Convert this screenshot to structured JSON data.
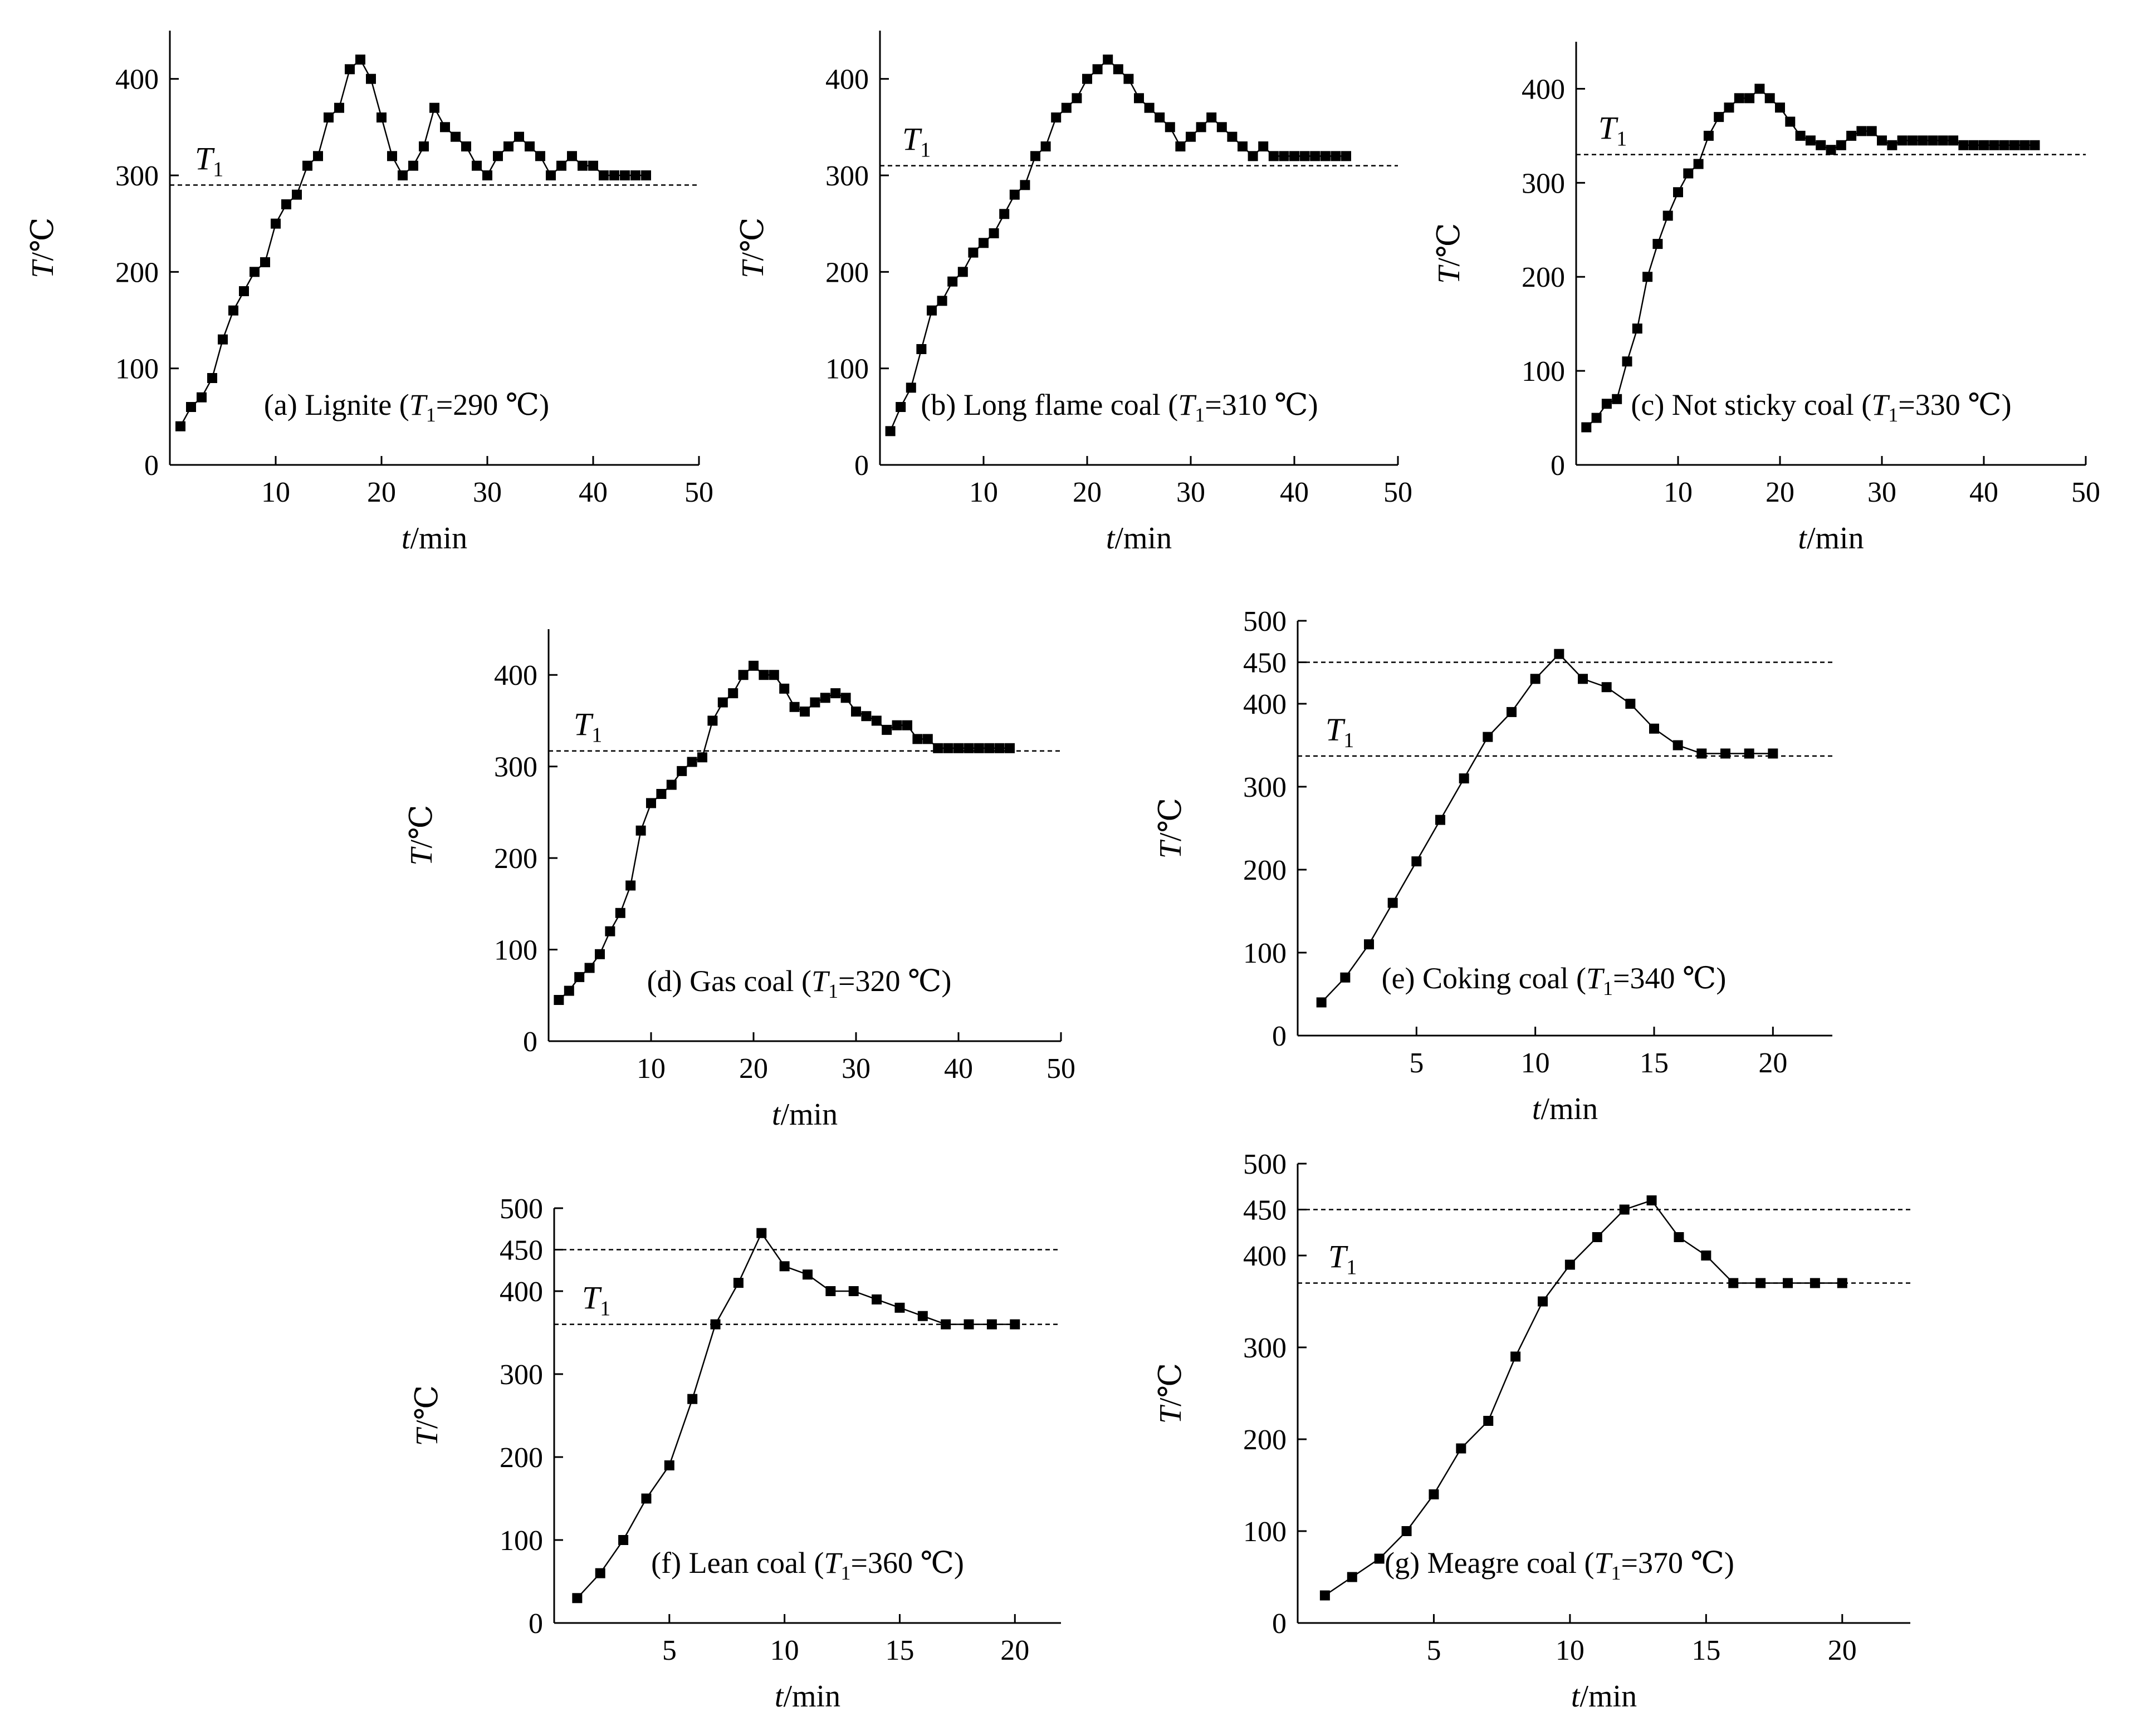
{
  "figure": {
    "panels_order": [
      "a",
      "b",
      "c",
      "d",
      "e",
      "f",
      "g"
    ]
  },
  "chart_data": [
    {
      "id": "a",
      "type": "line",
      "marker": "square",
      "caption": {
        "prefix": "(a) Lignite (",
        "var": "T",
        "sub": "1",
        "suffix": "=290 ℃)"
      },
      "xlabel": {
        "var": "t",
        "unit": "/min"
      },
      "ylabel": {
        "var": "T",
        "unit": "/℃"
      },
      "xlim": [
        0,
        50
      ],
      "ylim": [
        0,
        450
      ],
      "xticks": [
        10,
        20,
        30,
        40,
        50
      ],
      "yticks": [
        0,
        100,
        200,
        300,
        400
      ],
      "reference_lines": [
        {
          "y": 290,
          "label": {
            "var": "T",
            "sub": "1"
          }
        }
      ],
      "series": [
        {
          "name": "Lignite",
          "x": [
            1,
            2,
            3,
            4,
            5,
            6,
            7,
            8,
            9,
            10,
            11,
            12,
            13,
            14,
            15,
            16,
            17,
            18,
            19,
            20,
            21,
            22,
            23,
            24,
            25,
            26,
            27,
            28,
            29,
            30,
            31,
            32,
            33,
            34,
            35,
            36,
            37,
            38,
            39,
            40,
            41,
            42,
            43,
            44,
            45
          ],
          "y": [
            40,
            60,
            70,
            90,
            130,
            160,
            180,
            200,
            210,
            250,
            270,
            280,
            310,
            320,
            360,
            370,
            410,
            420,
            400,
            360,
            320,
            300,
            310,
            330,
            370,
            350,
            340,
            330,
            310,
            300,
            320,
            330,
            340,
            330,
            320,
            300,
            310,
            320,
            310,
            310,
            300,
            300,
            300,
            300,
            300
          ]
        }
      ]
    },
    {
      "id": "b",
      "type": "line",
      "marker": "square",
      "caption": {
        "prefix": "(b) Long flame coal (",
        "var": "T",
        "sub": "1",
        "suffix": "=310 ℃)"
      },
      "xlabel": {
        "var": "t",
        "unit": "/min"
      },
      "ylabel": {
        "var": "T",
        "unit": "/℃"
      },
      "xlim": [
        0,
        50
      ],
      "ylim": [
        0,
        450
      ],
      "xticks": [
        10,
        20,
        30,
        40,
        50
      ],
      "yticks": [
        0,
        100,
        200,
        300,
        400
      ],
      "reference_lines": [
        {
          "y": 310,
          "label": {
            "var": "T",
            "sub": "1"
          }
        }
      ],
      "series": [
        {
          "name": "Long flame coal",
          "x": [
            1,
            2,
            3,
            4,
            5,
            6,
            7,
            8,
            9,
            10,
            11,
            12,
            13,
            14,
            15,
            16,
            17,
            18,
            19,
            20,
            21,
            22,
            23,
            24,
            25,
            26,
            27,
            28,
            29,
            30,
            31,
            32,
            33,
            34,
            35,
            36,
            37,
            38,
            39,
            40,
            41,
            42,
            43,
            44,
            45
          ],
          "y": [
            35,
            60,
            80,
            120,
            160,
            170,
            190,
            200,
            220,
            230,
            240,
            260,
            280,
            290,
            320,
            330,
            360,
            370,
            380,
            400,
            410,
            420,
            410,
            400,
            380,
            370,
            360,
            350,
            330,
            340,
            350,
            360,
            350,
            340,
            330,
            320,
            330,
            320,
            320,
            320,
            320,
            320,
            320,
            320,
            320
          ]
        }
      ]
    },
    {
      "id": "c",
      "type": "line",
      "marker": "square",
      "caption": {
        "prefix": "(c) Not sticky coal (",
        "var": "T",
        "sub": "1",
        "suffix": "=330 ℃)"
      },
      "xlabel": {
        "var": "t",
        "unit": "/min"
      },
      "ylabel": {
        "var": "T",
        "unit": "/℃"
      },
      "xlim": [
        0,
        50
      ],
      "ylim": [
        0,
        450
      ],
      "xticks": [
        10,
        20,
        30,
        40,
        50
      ],
      "yticks": [
        0,
        100,
        200,
        300,
        400
      ],
      "reference_lines": [
        {
          "y": 330,
          "label": {
            "var": "T",
            "sub": "1"
          }
        }
      ],
      "series": [
        {
          "name": "Not sticky coal",
          "x": [
            1,
            2,
            3,
            4,
            5,
            6,
            7,
            8,
            9,
            10,
            11,
            12,
            13,
            14,
            15,
            16,
            17,
            18,
            19,
            20,
            21,
            22,
            23,
            24,
            25,
            26,
            27,
            28,
            29,
            30,
            31,
            32,
            33,
            34,
            35,
            36,
            37,
            38,
            39,
            40,
            41,
            42,
            43,
            44,
            45
          ],
          "y": [
            40,
            50,
            65,
            70,
            110,
            145,
            200,
            235,
            265,
            290,
            310,
            320,
            350,
            370,
            380,
            390,
            390,
            400,
            390,
            380,
            365,
            350,
            345,
            340,
            335,
            340,
            350,
            355,
            355,
            345,
            340,
            345,
            345,
            345,
            345,
            345,
            345,
            340,
            340,
            340,
            340,
            340,
            340,
            340,
            340
          ]
        }
      ]
    },
    {
      "id": "d",
      "type": "line",
      "marker": "square",
      "caption": {
        "prefix": "(d) Gas coal (",
        "var": "T",
        "sub": "1",
        "suffix": "=320 ℃)"
      },
      "xlabel": {
        "var": "t",
        "unit": "/min"
      },
      "ylabel": {
        "var": "T",
        "unit": "/℃"
      },
      "xlim": [
        0,
        50
      ],
      "ylim": [
        0,
        450
      ],
      "xticks": [
        10,
        20,
        30,
        40,
        50
      ],
      "yticks": [
        0,
        100,
        200,
        300,
        400
      ],
      "reference_lines": [
        {
          "y": 317,
          "label": {
            "var": "T",
            "sub": "1"
          }
        }
      ],
      "series": [
        {
          "name": "Gas coal",
          "x": [
            1,
            2,
            3,
            4,
            5,
            6,
            7,
            8,
            9,
            10,
            11,
            12,
            13,
            14,
            15,
            16,
            17,
            18,
            19,
            20,
            21,
            22,
            23,
            24,
            25,
            26,
            27,
            28,
            29,
            30,
            31,
            32,
            33,
            34,
            35,
            36,
            37,
            38,
            39,
            40,
            41,
            42,
            43,
            44,
            45
          ],
          "y": [
            45,
            55,
            70,
            80,
            95,
            120,
            140,
            170,
            230,
            260,
            270,
            280,
            295,
            305,
            310,
            350,
            370,
            380,
            400,
            410,
            400,
            400,
            385,
            365,
            360,
            370,
            375,
            380,
            375,
            360,
            355,
            350,
            340,
            345,
            345,
            330,
            330,
            320,
            320,
            320,
            320,
            320,
            320,
            320,
            320
          ]
        }
      ]
    },
    {
      "id": "e",
      "type": "line",
      "marker": "square",
      "caption": {
        "prefix": "(e) Coking coal (",
        "var": "T",
        "sub": "1",
        "suffix": "=340 ℃)"
      },
      "xlabel": {
        "var": "t",
        "unit": "/min"
      },
      "ylabel": {
        "var": "T",
        "unit": "/℃"
      },
      "xlim": [
        0,
        22.5
      ],
      "ylim": [
        0,
        500
      ],
      "xticks": [
        5,
        10,
        15,
        20
      ],
      "yticks": [
        0,
        100,
        200,
        300,
        400,
        450,
        500
      ],
      "reference_lines": [
        {
          "y": 450,
          "label": null
        },
        {
          "y": 337,
          "label": {
            "var": "T",
            "sub": "1"
          }
        }
      ],
      "series": [
        {
          "name": "Coking coal",
          "x": [
            1,
            2,
            3,
            4,
            5,
            6,
            7,
            8,
            9,
            10,
            11,
            12,
            13,
            14,
            15,
            16,
            17,
            18,
            19,
            20
          ],
          "y": [
            40,
            70,
            110,
            160,
            210,
            260,
            310,
            360,
            390,
            430,
            460,
            430,
            420,
            400,
            370,
            350,
            340,
            340,
            340,
            340
          ]
        }
      ]
    },
    {
      "id": "f",
      "type": "line",
      "marker": "square",
      "caption": {
        "prefix": "(f) Lean coal (",
        "var": "T",
        "sub": "1",
        "suffix": "=360 ℃)"
      },
      "xlabel": {
        "var": "t",
        "unit": "/min"
      },
      "ylabel": {
        "var": "T",
        "unit": "/℃"
      },
      "xlim": [
        0,
        22
      ],
      "ylim": [
        0,
        500
      ],
      "xticks": [
        5,
        10,
        15,
        20
      ],
      "yticks": [
        0,
        100,
        200,
        300,
        400,
        450,
        500
      ],
      "reference_lines": [
        {
          "y": 450,
          "label": null
        },
        {
          "y": 360,
          "label": {
            "var": "T",
            "sub": "1"
          }
        }
      ],
      "series": [
        {
          "name": "Lean coal",
          "x": [
            1,
            2,
            3,
            4,
            5,
            6,
            7,
            8,
            9,
            10,
            11,
            12,
            13,
            14,
            15,
            16,
            17,
            18,
            19,
            20
          ],
          "y": [
            30,
            60,
            100,
            150,
            190,
            270,
            360,
            410,
            470,
            430,
            420,
            400,
            400,
            390,
            380,
            370,
            360,
            360,
            360,
            360
          ]
        }
      ]
    },
    {
      "id": "g",
      "type": "line",
      "marker": "square",
      "caption": {
        "prefix": "(g) Meagre coal (",
        "var": "T",
        "sub": "1",
        "suffix": "=370 ℃)"
      },
      "xlabel": {
        "var": "t",
        "unit": "/min"
      },
      "ylabel": {
        "var": "T",
        "unit": "/℃"
      },
      "xlim": [
        0,
        22.5
      ],
      "ylim": [
        0,
        500
      ],
      "xticks": [
        5,
        10,
        15,
        20
      ],
      "yticks": [
        0,
        100,
        200,
        300,
        400,
        450,
        500
      ],
      "reference_lines": [
        {
          "y": 450,
          "label": null
        },
        {
          "y": 370,
          "label": {
            "var": "T",
            "sub": "1"
          }
        }
      ],
      "series": [
        {
          "name": "Meagre coal",
          "x": [
            1,
            2,
            3,
            4,
            5,
            6,
            7,
            8,
            9,
            10,
            11,
            12,
            13,
            14,
            15,
            16,
            17,
            18,
            19,
            20
          ],
          "y": [
            30,
            50,
            70,
            100,
            140,
            190,
            220,
            290,
            350,
            390,
            420,
            450,
            460,
            420,
            400,
            370,
            370,
            370,
            370,
            370
          ]
        }
      ]
    }
  ]
}
